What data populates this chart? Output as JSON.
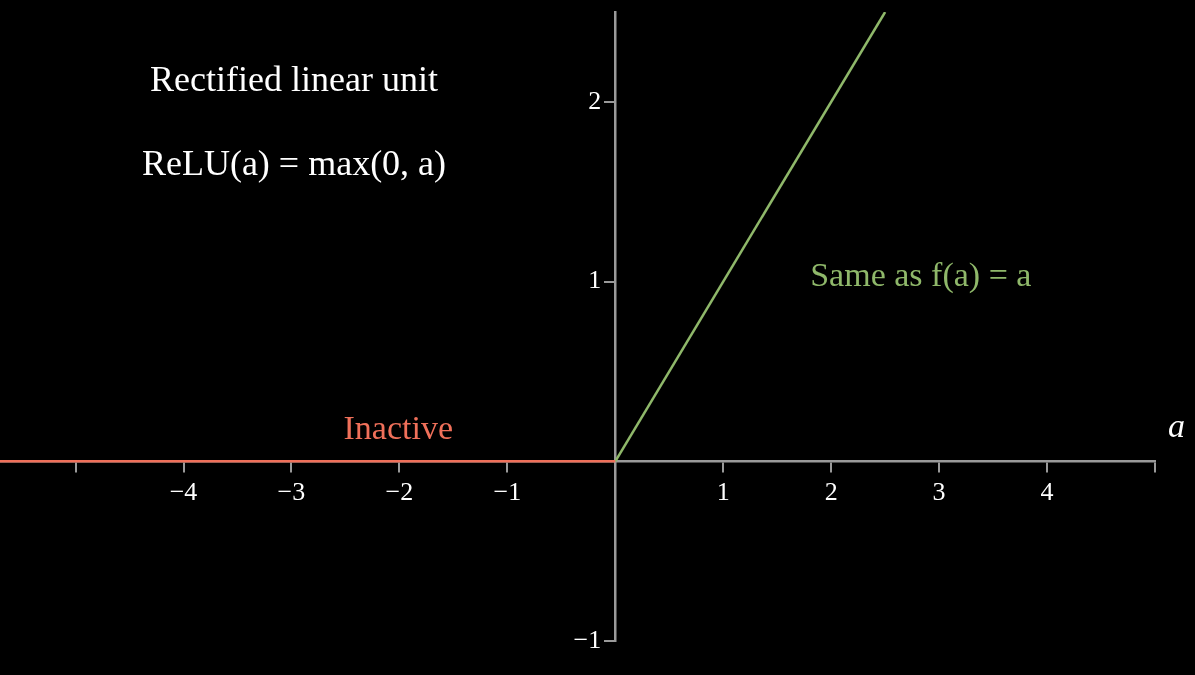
{
  "chart_data": {
    "type": "line",
    "title": "Rectified linear unit",
    "subtitle": "ReLU(a) = max(0, a)",
    "xlabel": "a",
    "series": [
      {
        "name": "Inactive",
        "color": "#f0705a",
        "x": [
          -5.7,
          0
        ],
        "values": [
          0,
          0
        ]
      },
      {
        "name": "Same as f(a) = a",
        "color": "#8fb86a",
        "x": [
          0,
          2.5
        ],
        "values": [
          0,
          2.5
        ]
      }
    ],
    "xlim": [
      -5.7,
      5
    ],
    "ylim": [
      -1,
      2.5
    ],
    "xticks": [
      {
        "value": -5,
        "label": null
      },
      {
        "value": -4,
        "label": "−4"
      },
      {
        "value": -3,
        "label": "−3"
      },
      {
        "value": -2,
        "label": "−2"
      },
      {
        "value": -1,
        "label": "−1"
      },
      1,
      2,
      3,
      4,
      {
        "value": 5,
        "label": null
      }
    ],
    "yticks": [
      {
        "value": -1,
        "label": "−1"
      },
      1,
      2
    ],
    "grid": false,
    "marker": "none"
  }
}
